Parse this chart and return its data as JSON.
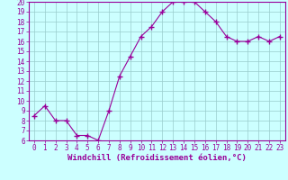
{
  "x": [
    0,
    1,
    2,
    3,
    4,
    5,
    6,
    7,
    8,
    9,
    10,
    11,
    12,
    13,
    14,
    15,
    16,
    17,
    18,
    19,
    20,
    21,
    22,
    23
  ],
  "y": [
    8.5,
    9.5,
    8.0,
    8.0,
    6.5,
    6.5,
    6.0,
    9.0,
    12.5,
    14.5,
    16.5,
    17.5,
    19.0,
    20.0,
    20.0,
    20.0,
    19.0,
    18.0,
    16.5,
    16.0,
    16.0,
    16.5,
    16.0,
    16.5
  ],
  "line_color": "#990099",
  "marker": "+",
  "marker_size": 4,
  "marker_lw": 1.0,
  "bg_color": "#ccffff",
  "grid_color": "#99cccc",
  "xlabel": "Windchill (Refroidissement éolien,°C)",
  "xlim": [
    -0.5,
    23.5
  ],
  "ylim": [
    6,
    20
  ],
  "yticks": [
    6,
    7,
    8,
    9,
    10,
    11,
    12,
    13,
    14,
    15,
    16,
    17,
    18,
    19,
    20
  ],
  "xticks": [
    0,
    1,
    2,
    3,
    4,
    5,
    6,
    7,
    8,
    9,
    10,
    11,
    12,
    13,
    14,
    15,
    16,
    17,
    18,
    19,
    20,
    21,
    22,
    23
  ],
  "tick_fontsize": 5.5,
  "xlabel_fontsize": 6.5,
  "line_width": 0.8
}
